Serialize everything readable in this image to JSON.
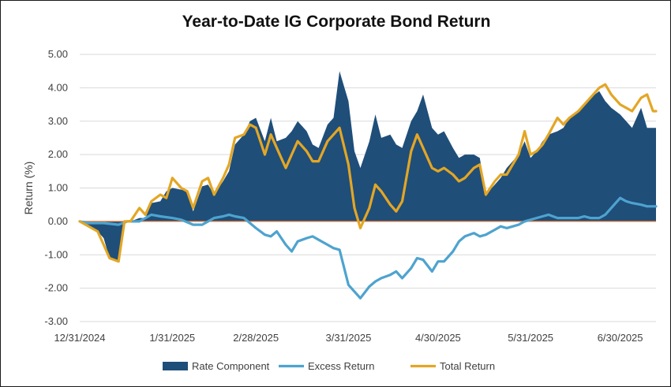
{
  "chart_data": {
    "type": "area",
    "title": "Year-to-Date IG Corporate Bond Return",
    "ylabel": "Return (%)",
    "xlabel": "",
    "ylim": [
      -3.0,
      5.0
    ],
    "yticks": [
      5.0,
      4.0,
      3.0,
      2.0,
      1.0,
      0.0,
      -1.0,
      -2.0,
      -3.0
    ],
    "ytick_labels": [
      "5.00",
      "4.00",
      "3.00",
      "2.00",
      "1.00",
      "0.00",
      "-1.00",
      "-2.00",
      "-3.00"
    ],
    "x_range": [
      "2024-12-31",
      "2025-07-12"
    ],
    "xtick_labels": [
      "12/31/2024",
      "1/31/2025",
      "2/28/2025",
      "3/31/2025",
      "4/30/2025",
      "5/31/2025",
      "6/30/2025"
    ],
    "xtick_dates": [
      "2024-12-31",
      "2025-01-31",
      "2025-02-28",
      "2025-03-31",
      "2025-04-30",
      "2025-05-31",
      "2025-06-30"
    ],
    "grid": true,
    "legend_position": "bottom",
    "zero_line_color": "#e07b39",
    "series": [
      {
        "name": "Rate Component",
        "kind": "area",
        "color": "#1f4e79",
        "x": [
          "2024-12-31",
          "2025-01-02",
          "2025-01-06",
          "2025-01-08",
          "2025-01-10",
          "2025-01-13",
          "2025-01-15",
          "2025-01-16",
          "2025-01-17",
          "2025-01-20",
          "2025-01-22",
          "2025-01-24",
          "2025-01-27",
          "2025-01-29",
          "2025-01-31",
          "2025-02-03",
          "2025-02-05",
          "2025-02-07",
          "2025-02-10",
          "2025-02-12",
          "2025-02-14",
          "2025-02-17",
          "2025-02-19",
          "2025-02-21",
          "2025-02-24",
          "2025-02-26",
          "2025-02-28",
          "2025-03-03",
          "2025-03-05",
          "2025-03-07",
          "2025-03-10",
          "2025-03-12",
          "2025-03-14",
          "2025-03-17",
          "2025-03-19",
          "2025-03-21",
          "2025-03-24",
          "2025-03-26",
          "2025-03-28",
          "2025-03-31",
          "2025-04-02",
          "2025-04-04",
          "2025-04-07",
          "2025-04-09",
          "2025-04-11",
          "2025-04-14",
          "2025-04-16",
          "2025-04-18",
          "2025-04-21",
          "2025-04-23",
          "2025-04-25",
          "2025-04-28",
          "2025-04-30",
          "2025-05-02",
          "2025-05-05",
          "2025-05-07",
          "2025-05-09",
          "2025-05-12",
          "2025-05-14",
          "2025-05-16",
          "2025-05-19",
          "2025-05-21",
          "2025-05-23",
          "2025-05-27",
          "2025-05-29",
          "2025-05-31",
          "2025-06-02",
          "2025-06-04",
          "2025-06-06",
          "2025-06-09",
          "2025-06-11",
          "2025-06-13",
          "2025-06-16",
          "2025-06-18",
          "2025-06-20",
          "2025-06-23",
          "2025-06-25",
          "2025-06-27",
          "2025-06-30",
          "2025-07-02",
          "2025-07-04",
          "2025-07-07",
          "2025-07-09",
          "2025-07-11",
          "2025-07-12"
        ],
        "values": [
          0.0,
          -0.1,
          -0.3,
          -0.5,
          -1.1,
          -1.2,
          0.0,
          0.0,
          0.0,
          0.1,
          0.1,
          0.55,
          0.6,
          0.9,
          1.0,
          0.95,
          0.9,
          0.3,
          1.05,
          1.1,
          0.8,
          1.2,
          1.5,
          2.3,
          2.6,
          3.0,
          3.1,
          2.4,
          3.1,
          2.4,
          2.5,
          2.7,
          3.0,
          2.7,
          2.3,
          2.2,
          2.9,
          3.1,
          4.5,
          3.6,
          2.1,
          1.6,
          2.4,
          3.2,
          2.5,
          2.6,
          2.3,
          2.2,
          3.0,
          3.3,
          3.8,
          2.8,
          2.6,
          2.7,
          2.2,
          1.9,
          2.0,
          2.0,
          1.9,
          0.8,
          1.1,
          1.3,
          1.6,
          2.0,
          2.4,
          1.9,
          2.1,
          2.4,
          2.6,
          2.7,
          2.8,
          3.1,
          3.3,
          3.5,
          3.7,
          3.9,
          3.6,
          3.4,
          3.2,
          3.0,
          2.8,
          3.4,
          2.8,
          2.8,
          2.8
        ]
      },
      {
        "name": "Excess Return",
        "kind": "line",
        "color": "#4ea3cf",
        "x": [
          "2024-12-31",
          "2025-01-03",
          "2025-01-08",
          "2025-01-13",
          "2025-01-16",
          "2025-01-20",
          "2025-01-24",
          "2025-01-27",
          "2025-01-31",
          "2025-02-03",
          "2025-02-07",
          "2025-02-10",
          "2025-02-14",
          "2025-02-17",
          "2025-02-19",
          "2025-02-21",
          "2025-02-24",
          "2025-02-28",
          "2025-03-03",
          "2025-03-05",
          "2025-03-07",
          "2025-03-10",
          "2025-03-12",
          "2025-03-14",
          "2025-03-17",
          "2025-03-19",
          "2025-03-21",
          "2025-03-24",
          "2025-03-26",
          "2025-03-28",
          "2025-03-31",
          "2025-04-02",
          "2025-04-04",
          "2025-04-07",
          "2025-04-09",
          "2025-04-11",
          "2025-04-14",
          "2025-04-16",
          "2025-04-18",
          "2025-04-21",
          "2025-04-23",
          "2025-04-25",
          "2025-04-28",
          "2025-04-30",
          "2025-05-02",
          "2025-05-05",
          "2025-05-07",
          "2025-05-09",
          "2025-05-12",
          "2025-05-14",
          "2025-05-16",
          "2025-05-19",
          "2025-05-21",
          "2025-05-23",
          "2025-05-27",
          "2025-05-29",
          "2025-05-31",
          "2025-06-02",
          "2025-06-04",
          "2025-06-06",
          "2025-06-09",
          "2025-06-11",
          "2025-06-13",
          "2025-06-16",
          "2025-06-18",
          "2025-06-20",
          "2025-06-23",
          "2025-06-25",
          "2025-06-27",
          "2025-06-30",
          "2025-07-02",
          "2025-07-04",
          "2025-07-07",
          "2025-07-09",
          "2025-07-11",
          "2025-07-12"
        ],
        "values": [
          0.0,
          -0.05,
          -0.05,
          -0.1,
          0.0,
          0.0,
          0.2,
          0.15,
          0.1,
          0.05,
          -0.1,
          -0.1,
          0.1,
          0.15,
          0.2,
          0.15,
          0.1,
          -0.2,
          -0.4,
          -0.45,
          -0.3,
          -0.7,
          -0.9,
          -0.6,
          -0.5,
          -0.45,
          -0.55,
          -0.7,
          -0.8,
          -0.85,
          -1.9,
          -2.1,
          -2.3,
          -1.95,
          -1.8,
          -1.7,
          -1.6,
          -1.5,
          -1.7,
          -1.4,
          -1.1,
          -1.15,
          -1.5,
          -1.2,
          -1.2,
          -0.9,
          -0.6,
          -0.45,
          -0.35,
          -0.45,
          -0.4,
          -0.25,
          -0.15,
          -0.2,
          -0.1,
          0.0,
          0.05,
          0.1,
          0.15,
          0.2,
          0.1,
          0.1,
          0.1,
          0.1,
          0.15,
          0.1,
          0.1,
          0.2,
          0.4,
          0.7,
          0.6,
          0.55,
          0.5,
          0.45,
          0.45,
          0.45
        ]
      },
      {
        "name": "Total Return",
        "kind": "line",
        "color": "#e3a625",
        "x": [
          "2024-12-31",
          "2025-01-02",
          "2025-01-06",
          "2025-01-08",
          "2025-01-10",
          "2025-01-13",
          "2025-01-15",
          "2025-01-16",
          "2025-01-17",
          "2025-01-20",
          "2025-01-22",
          "2025-01-24",
          "2025-01-27",
          "2025-01-29",
          "2025-01-31",
          "2025-02-03",
          "2025-02-05",
          "2025-02-07",
          "2025-02-10",
          "2025-02-12",
          "2025-02-14",
          "2025-02-17",
          "2025-02-19",
          "2025-02-21",
          "2025-02-24",
          "2025-02-26",
          "2025-02-28",
          "2025-03-03",
          "2025-03-05",
          "2025-03-07",
          "2025-03-10",
          "2025-03-12",
          "2025-03-14",
          "2025-03-17",
          "2025-03-19",
          "2025-03-21",
          "2025-03-24",
          "2025-03-26",
          "2025-03-28",
          "2025-03-31",
          "2025-04-02",
          "2025-04-04",
          "2025-04-07",
          "2025-04-09",
          "2025-04-11",
          "2025-04-14",
          "2025-04-16",
          "2025-04-18",
          "2025-04-21",
          "2025-04-23",
          "2025-04-25",
          "2025-04-28",
          "2025-04-30",
          "2025-05-02",
          "2025-05-05",
          "2025-05-07",
          "2025-05-09",
          "2025-05-12",
          "2025-05-14",
          "2025-05-16",
          "2025-05-19",
          "2025-05-21",
          "2025-05-23",
          "2025-05-27",
          "2025-05-29",
          "2025-05-31",
          "2025-06-02",
          "2025-06-04",
          "2025-06-06",
          "2025-06-09",
          "2025-06-11",
          "2025-06-13",
          "2025-06-16",
          "2025-06-18",
          "2025-06-20",
          "2025-06-23",
          "2025-06-25",
          "2025-06-27",
          "2025-06-30",
          "2025-07-02",
          "2025-07-04",
          "2025-07-07",
          "2025-07-09",
          "2025-07-11",
          "2025-07-12"
        ],
        "values": [
          0.0,
          -0.1,
          -0.3,
          -0.7,
          -1.1,
          -1.2,
          0.0,
          0.0,
          0.0,
          0.4,
          0.2,
          0.6,
          0.8,
          0.7,
          1.3,
          1.0,
          0.9,
          0.4,
          1.2,
          1.3,
          0.8,
          1.3,
          1.7,
          2.5,
          2.6,
          2.9,
          2.8,
          2.0,
          2.6,
          2.2,
          1.6,
          2.0,
          2.4,
          2.1,
          1.8,
          1.8,
          2.4,
          2.6,
          2.8,
          1.7,
          0.4,
          -0.2,
          0.4,
          1.1,
          0.9,
          0.5,
          0.3,
          0.6,
          2.1,
          2.6,
          2.2,
          1.6,
          1.5,
          1.6,
          1.4,
          1.2,
          1.3,
          1.6,
          1.7,
          0.8,
          1.2,
          1.4,
          1.4,
          2.0,
          2.7,
          2.0,
          2.1,
          2.3,
          2.6,
          3.1,
          2.9,
          3.1,
          3.3,
          3.5,
          3.7,
          4.0,
          4.1,
          3.8,
          3.5,
          3.4,
          3.3,
          3.7,
          3.8,
          3.3,
          3.3
        ]
      }
    ]
  }
}
